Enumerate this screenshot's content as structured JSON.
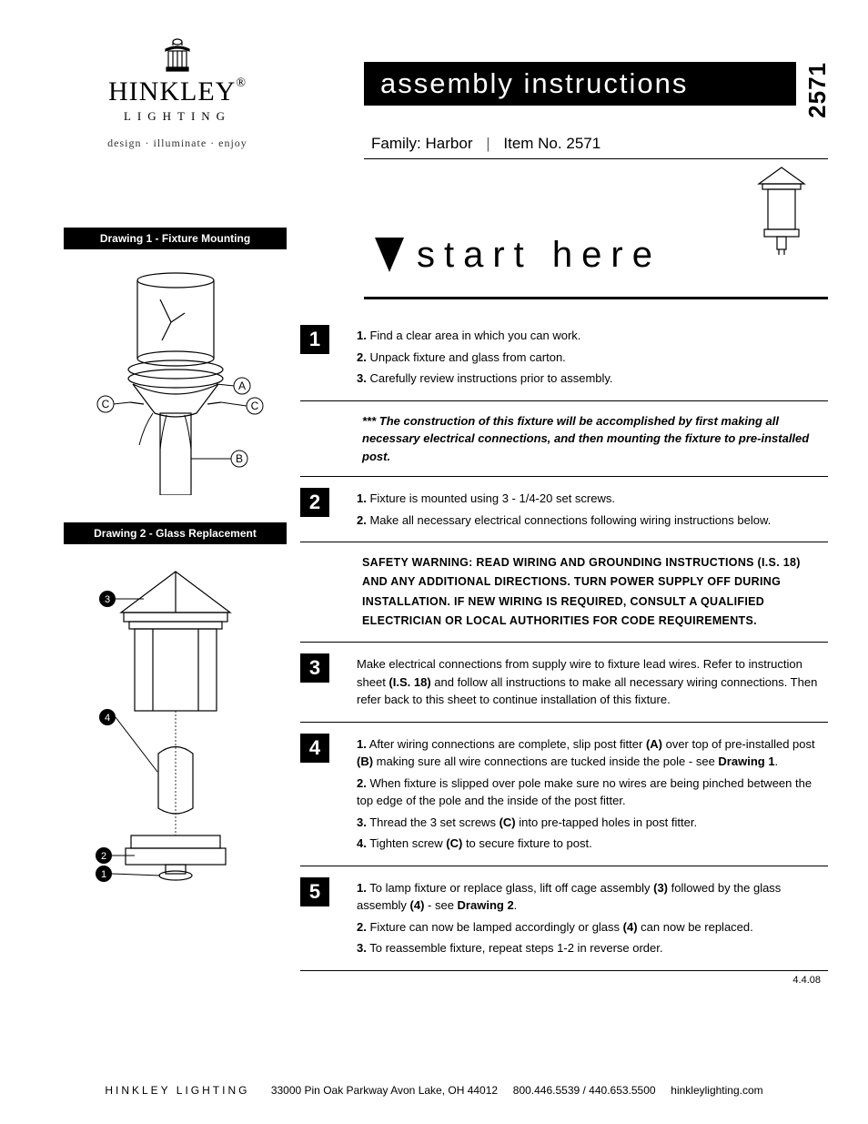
{
  "logo": {
    "name_html": "HINKLEY<span style='font-size:14px;vertical-align:top'>®</span>",
    "sub": "LIGHTING",
    "tag": "design · illuminate · enjoy"
  },
  "title": "assembly instructions",
  "model_vert": "2571",
  "family_label": "Family:",
  "family_value": "Harbor",
  "item_label": "Item No.",
  "item_value": "2571",
  "start_here": "start here",
  "drawing1_label": "Drawing 1 - Fixture Mounting",
  "drawing2_label": "Drawing 2 - Glass Replacement",
  "callouts": {
    "A": "A",
    "B": "B",
    "C": "C",
    "n1": "1",
    "n2": "2",
    "n3": "3",
    "n4": "4"
  },
  "steps": {
    "s1": {
      "num": "1",
      "items": [
        {
          "n": "1.",
          "t": "Find a clear area in which you can work."
        },
        {
          "n": "2.",
          "t": "Unpack fixture and glass from carton."
        },
        {
          "n": "3.",
          "t": "Carefully review instructions prior to assembly."
        }
      ]
    },
    "note": "*** The construction of this fixture will be accomplished by first making all necessary electrical connections, and then mounting the fixture to pre-installed post.",
    "s2": {
      "num": "2",
      "items": [
        {
          "n": "1.",
          "t": "Fixture is mounted using 3 - 1/4-20 set screws."
        },
        {
          "n": "2.",
          "t": "Make all necessary electrical connections following wiring instructions below."
        }
      ]
    },
    "safety": "SAFETY WARNING: READ WIRING AND GROUNDING INSTRUCTIONS (I.S. 18) AND ANY ADDITIONAL DIRECTIONS. TURN POWER SUPPLY OFF DURING INSTALLATION. IF NEW WIRING IS REQUIRED, CONSULT A QUALIFIED ELECTRICIAN OR LOCAL AUTHORITIES FOR CODE REQUIREMENTS.",
    "s3": {
      "num": "3",
      "html": "Make electrical connections from supply wire to fixture lead wires. Refer to instruction sheet <b>(I.S. 18)</b> and follow all instructions to make all necessary wiring connections. Then refer back to this sheet to continue installation of this fixture."
    },
    "s4": {
      "num": "4",
      "items_html": [
        "<b>1.</b> After wiring connections are complete, slip post fitter <b>(A)</b> over top of pre-installed post <b>(B)</b> making sure all wire connections are tucked inside the pole - see <b>Drawing 1</b>.",
        "<b>2.</b> When fixture is slipped over pole make sure no wires are being pinched between the top edge of the pole and the inside of the post fitter.",
        "<b>3.</b> Thread the 3 set screws <b>(C)</b> into pre-tapped holes in post fitter.",
        "<b>4.</b> Tighten screw <b>(C)</b> to secure fixture to post."
      ]
    },
    "s5": {
      "num": "5",
      "items_html": [
        "<b>1.</b> To lamp fixture or replace glass, lift off cage assembly <b>(3)</b> followed by the glass assembly <b>(4)</b> - see <b>Drawing 2</b>.",
        "<b>2.</b> Fixture can now be lamped accordingly or glass <b>(4)</b> can now be replaced.",
        "<b>3.</b> To reassemble fixture, repeat steps 1-2 in reverse order."
      ]
    }
  },
  "date": "4.4.08",
  "footer": {
    "brand": "HINKLEY LIGHTING",
    "addr": "33000 Pin Oak Parkway   Avon Lake, OH  44012",
    "phone": "800.446.5539 / 440.653.5500",
    "site": "hinkleylighting.com"
  }
}
